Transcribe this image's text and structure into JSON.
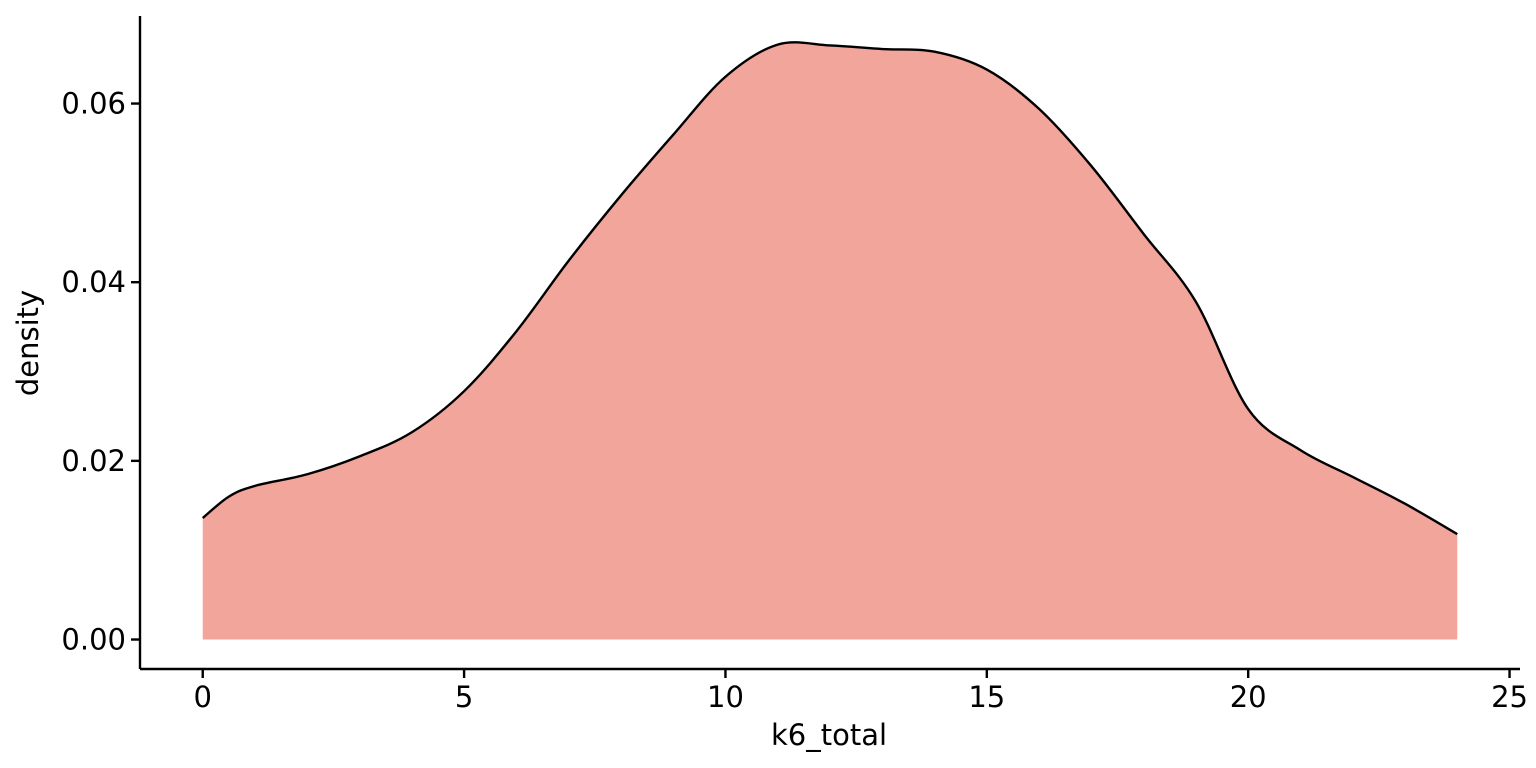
{
  "chart_data": {
    "type": "area",
    "title": "",
    "xlabel": "k6_total",
    "ylabel": "density",
    "xlim": [
      -1.2,
      25.2
    ],
    "ylim": [
      -0.0033,
      0.0698
    ],
    "x_ticks": [
      0,
      5,
      10,
      15,
      20,
      25
    ],
    "y_ticks": [
      0.0,
      0.02,
      0.04,
      0.06
    ],
    "x_tick_labels": [
      "0",
      "5",
      "10",
      "15",
      "20",
      "25"
    ],
    "y_tick_labels": [
      "0.00",
      "0.02",
      "0.04",
      "0.06"
    ],
    "grid": false,
    "legend": "none",
    "fill_color": "#F1A59B",
    "line_color": "#000000",
    "series": [
      {
        "x": [
          0,
          0.5,
          1,
          2,
          3,
          4,
          5,
          6,
          7,
          8,
          9,
          10,
          11,
          12,
          13,
          14,
          15,
          16,
          17,
          18,
          19,
          20,
          21,
          22,
          23,
          24
        ],
        "y": [
          0.0136,
          0.016,
          0.0172,
          0.0185,
          0.0205,
          0.0232,
          0.0278,
          0.0345,
          0.0424,
          0.0497,
          0.0565,
          0.063,
          0.0666,
          0.0665,
          0.0661,
          0.0658,
          0.0638,
          0.0594,
          0.053,
          0.0454,
          0.0378,
          0.0258,
          0.0212,
          0.0182,
          0.0152,
          0.0118
        ]
      }
    ]
  }
}
